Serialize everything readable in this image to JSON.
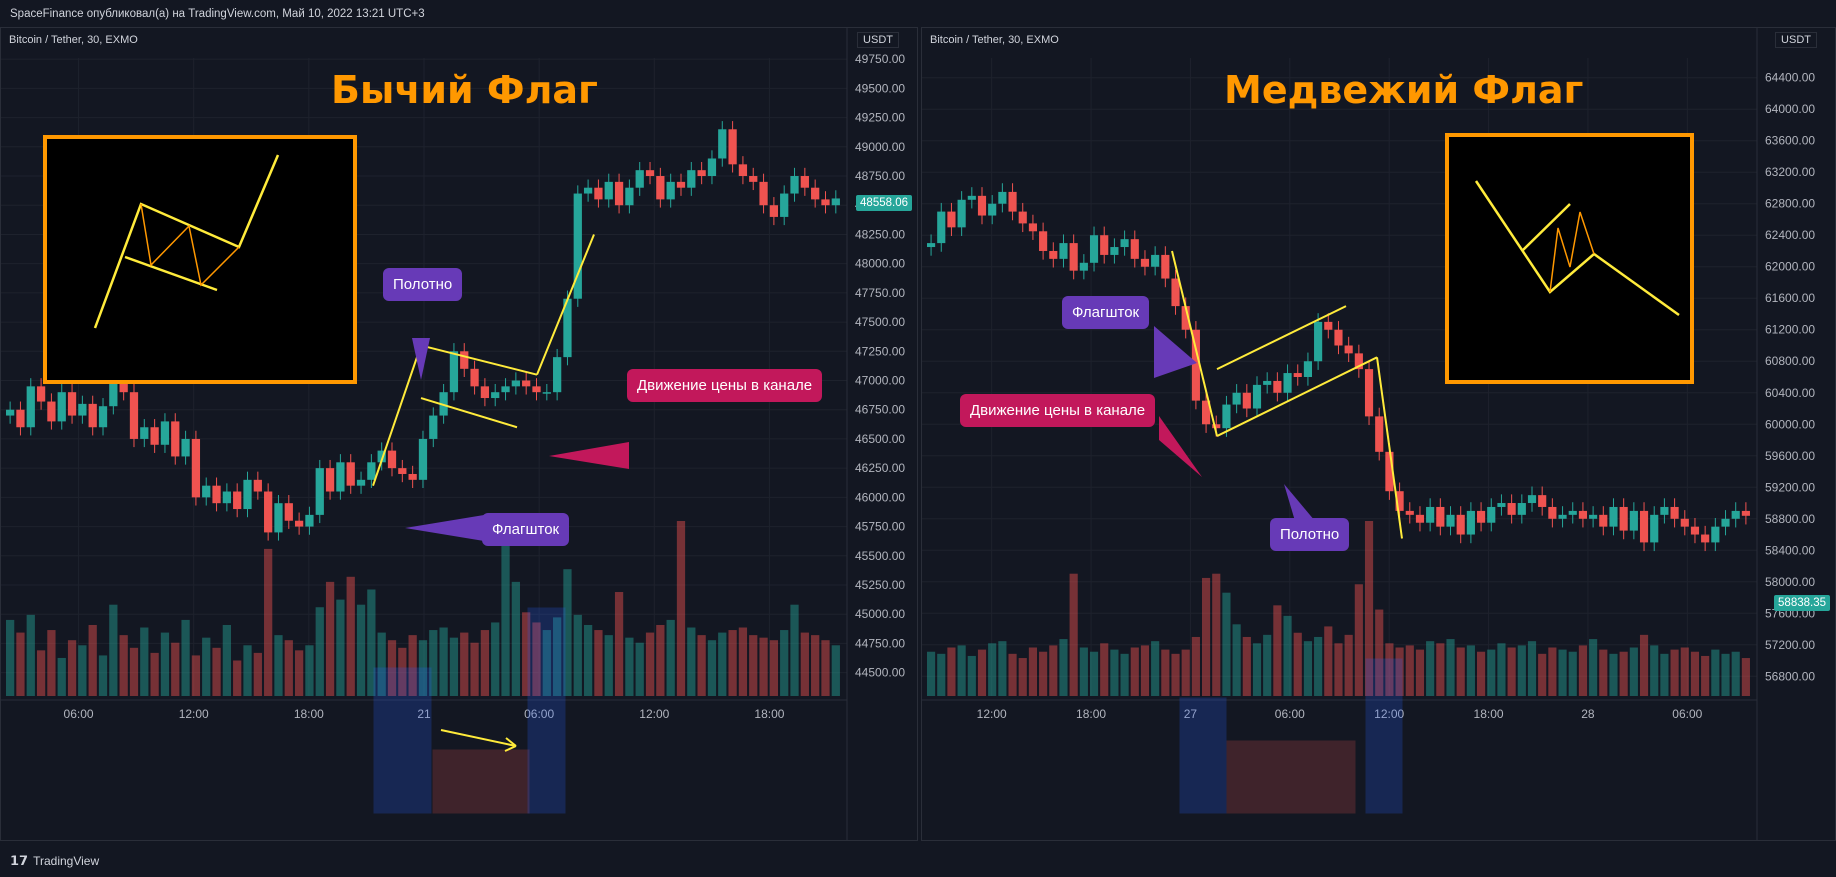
{
  "caption": "SpaceFinance опубликовал(а) на TradingView.com, Май 10, 2022 13:21 UTC+3",
  "footer_brand": "TradingView",
  "colors": {
    "up": "#26a69a",
    "down": "#ef5350",
    "accent": "#ff9800",
    "trend": "#ffeb3b",
    "bubble_purple": "#673ab7",
    "bubble_pink": "#c2185b"
  },
  "left": {
    "symbol": "Bitcoin / Tether, 30, EXMO",
    "currency": "USDT",
    "title": "Бычий Флаг",
    "last_price": "48558.06",
    "labels": {
      "canvas": "Полотно",
      "channel": "Движение цены в канале",
      "pole": "Флагшток"
    }
  },
  "right": {
    "symbol": "Bitcoin / Tether, 30, EXMO",
    "currency": "USDT",
    "title": "Медвежий Флаг",
    "last_price": "58838.35",
    "labels": {
      "pole": "Флагшток",
      "channel": "Движение цены в канале",
      "canvas": "Полотно"
    }
  },
  "chart_data": [
    {
      "type": "candlestick",
      "title": "Бычий Флаг",
      "symbol": "Bitcoin / Tether, 30, EXMO",
      "ylim": [
        44300,
        49760
      ],
      "y_ticks": [
        44500,
        44750,
        45000,
        45250,
        45500,
        45750,
        46000,
        46250,
        46500,
        46750,
        47000,
        47250,
        47500,
        47750,
        48000,
        48250,
        48500,
        48750,
        49000,
        49250,
        49500,
        49750
      ],
      "x_ticks": [
        "06:00",
        "12:00",
        "18:00",
        "21",
        "06:00",
        "12:00",
        "18:00"
      ],
      "last_price": 48558.06,
      "pattern": {
        "pole": [
          46100,
          47300
        ],
        "flag_top": [
          47300,
          47050
        ],
        "flag_bottom": [
          46850,
          46600
        ],
        "breakout_to": 48250
      },
      "close": [
        46750,
        46600,
        46950,
        46820,
        46650,
        46900,
        46700,
        46800,
        46600,
        46780,
        47050,
        46900,
        46500,
        46600,
        46450,
        46650,
        46350,
        46500,
        46000,
        46100,
        45950,
        46050,
        45900,
        46150,
        46050,
        45700,
        45950,
        45800,
        45750,
        45850,
        46250,
        46050,
        46300,
        46100,
        46150,
        46300,
        46400,
        46250,
        46200,
        46150,
        46500,
        46700,
        46900,
        47250,
        47100,
        46950,
        46850,
        46900,
        46950,
        47000,
        46950,
        46900,
        46900,
        47200,
        47700,
        48600,
        48650,
        48550,
        48700,
        48500,
        48650,
        48800,
        48750,
        48550,
        48700,
        48650,
        48800,
        48750,
        48900,
        49150,
        48850,
        48750,
        48700,
        48500,
        48400,
        48600,
        48750,
        48650,
        48550,
        48500,
        48558
      ],
      "volume": [
        3,
        2.5,
        3.2,
        1.8,
        2.6,
        1.5,
        2.2,
        2.0,
        2.8,
        1.6,
        3.6,
        2.4,
        1.9,
        2.7,
        1.7,
        2.5,
        2.1,
        3.0,
        1.6,
        2.3,
        1.9,
        2.8,
        1.4,
        2.0,
        1.7,
        5.8,
        2.4,
        2.2,
        1.8,
        2.0,
        3.5,
        4.5,
        3.8,
        4.7,
        3.6,
        4.2,
        2.5,
        2.2,
        1.9,
        2.4,
        2.2,
        2.6,
        2.7,
        2.3,
        2.5,
        2.1,
        2.6,
        2.9,
        6.8,
        4.5,
        3.3,
        2.9,
        2.6,
        3.1,
        5.0,
        3.2,
        2.8,
        2.6,
        2.4,
        4.1,
        2.3,
        2.1,
        2.5,
        2.8,
        3.0,
        6.9,
        2.7,
        2.4,
        2.2,
        2.5,
        2.6,
        2.7,
        2.4,
        2.3,
        2.2,
        2.6,
        3.6,
        2.5,
        2.4,
        2.2,
        2.0
      ]
    },
    {
      "type": "candlestick",
      "title": "Медвежий Флаг",
      "symbol": "Bitcoin / Tether, 30, EXMO",
      "ylim": [
        56550,
        64650
      ],
      "y_ticks": [
        56800,
        57200,
        57600,
        58000,
        58400,
        58800,
        59200,
        59600,
        60000,
        60400,
        60800,
        61200,
        61600,
        62000,
        62400,
        62800,
        63200,
        63600,
        64000,
        64400
      ],
      "x_ticks": [
        "12:00",
        "18:00",
        "27",
        "06:00",
        "12:00",
        "18:00",
        "28",
        "06:00"
      ],
      "last_price": 58838.35,
      "pattern": {
        "pole": [
          62200,
          59850
        ],
        "flag_top": [
          60700,
          61500
        ],
        "flag_bottom": [
          59850,
          60850
        ],
        "breakdown_to": 58550
      },
      "close": [
        62300,
        62700,
        62500,
        62850,
        62900,
        62650,
        62800,
        62950,
        62700,
        62550,
        62450,
        62200,
        62100,
        62300,
        61950,
        62050,
        62400,
        62150,
        62250,
        62350,
        62100,
        62000,
        62150,
        61850,
        61500,
        61200,
        60300,
        60000,
        59950,
        60250,
        60400,
        60200,
        60500,
        60550,
        60400,
        60650,
        60600,
        60800,
        61300,
        61200,
        61000,
        60900,
        60700,
        60100,
        59650,
        59150,
        58900,
        58850,
        58750,
        58950,
        58700,
        58850,
        58600,
        58900,
        58750,
        58950,
        59000,
        58850,
        59000,
        59100,
        58950,
        58800,
        58850,
        58900,
        58800,
        58850,
        58700,
        58950,
        58650,
        58900,
        58500,
        58850,
        58950,
        58800,
        58700,
        58600,
        58500,
        58700,
        58800,
        58900,
        58838
      ],
      "volume": [
        2.1,
        2.0,
        2.3,
        2.4,
        1.9,
        2.2,
        2.5,
        2.6,
        2.0,
        1.8,
        2.3,
        2.1,
        2.4,
        2.7,
        5.8,
        2.3,
        2.1,
        2.5,
        2.2,
        2.0,
        2.3,
        2.4,
        2.6,
        2.2,
        2.0,
        2.2,
        2.8,
        5.6,
        5.8,
        4.9,
        3.4,
        2.8,
        2.5,
        2.9,
        4.3,
        3.8,
        3.0,
        2.6,
        2.8,
        3.3,
        2.5,
        2.9,
        5.3,
        8.3,
        4.1,
        2.5,
        2.3,
        2.4,
        2.2,
        2.6,
        2.5,
        2.7,
        2.3,
        2.4,
        2.1,
        2.2,
        2.5,
        2.3,
        2.4,
        2.6,
        2.0,
        2.3,
        2.2,
        2.1,
        2.4,
        2.7,
        2.2,
        2.0,
        2.1,
        2.3,
        2.9,
        2.4,
        2.0,
        2.2,
        2.3,
        2.1,
        1.9,
        2.2,
        2.0,
        2.1,
        1.8
      ]
    }
  ]
}
